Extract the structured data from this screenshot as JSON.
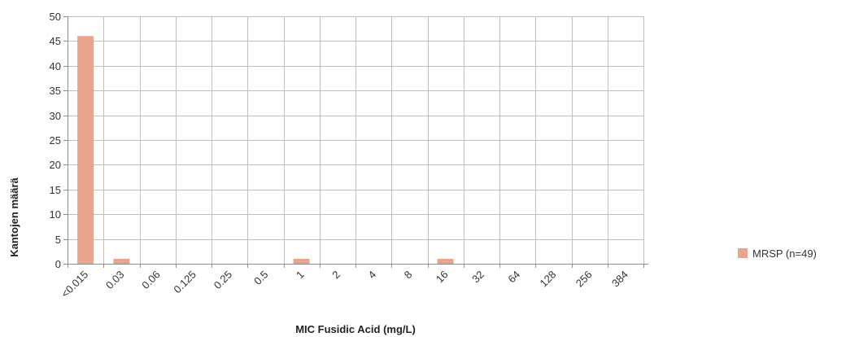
{
  "chart_data": {
    "type": "bar",
    "categories": [
      "<0.015",
      "0.03",
      "0.06",
      "0.125",
      "0.25",
      "0.5",
      "1",
      "2",
      "4",
      "8",
      "16",
      "32",
      "64",
      "128",
      "256",
      "384"
    ],
    "series": [
      {
        "name": "MRSP (n=49)",
        "values": [
          46,
          1,
          0,
          0,
          0,
          0,
          1,
          0,
          0,
          0,
          1,
          0,
          0,
          0,
          0,
          0
        ],
        "color": "#e8a58e"
      }
    ],
    "xlabel": "MIC Fusidic Acid (mg/L)",
    "ylabel": "Kantojen määrä",
    "ylim": [
      0,
      50
    ],
    "yticks": [
      0,
      5,
      10,
      15,
      20,
      25,
      30,
      35,
      40,
      45,
      50
    ],
    "grid": true,
    "legend_position": "right",
    "colors": {
      "grid": "#bfbfbf",
      "axis": "#8c8c8c"
    }
  }
}
